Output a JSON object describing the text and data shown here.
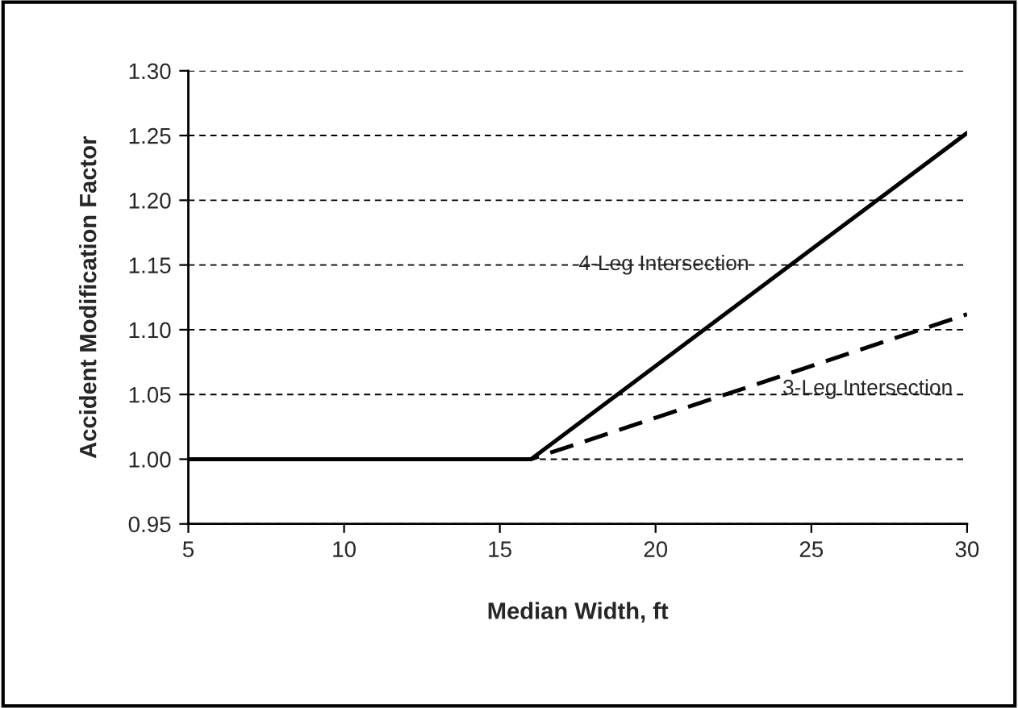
{
  "chart_data": {
    "type": "line",
    "xlabel": "Median Width, ft",
    "ylabel": "Accident Modification Factor",
    "xlim": [
      5,
      30
    ],
    "xticks": [
      5,
      10,
      15,
      20,
      25,
      30
    ],
    "ylim": [
      0.95,
      1.3
    ],
    "yticks": [
      {
        "value": 0.95,
        "label": "0.95"
      },
      {
        "value": 1.0,
        "label": "1.00"
      },
      {
        "value": 1.05,
        "label": "1.05"
      },
      {
        "value": 1.1,
        "label": "1.10"
      },
      {
        "value": 1.15,
        "label": "1.15"
      },
      {
        "value": 1.2,
        "label": "1.20"
      },
      {
        "value": 1.25,
        "label": "1.25"
      },
      {
        "value": 1.3,
        "label": "1.30"
      }
    ],
    "grid": "y",
    "legend": false,
    "series": [
      {
        "name": "4-Leg Intersection",
        "color": "#000000",
        "line_style": "solid",
        "x": [
          5,
          16,
          30
        ],
        "values": [
          1.0,
          1.0,
          1.252
        ]
      },
      {
        "name": "3-Leg Intersection",
        "color": "#000000",
        "line_style": "dashed",
        "x": [
          5,
          16,
          30
        ],
        "values": [
          1.0,
          1.0,
          1.112
        ]
      }
    ]
  }
}
